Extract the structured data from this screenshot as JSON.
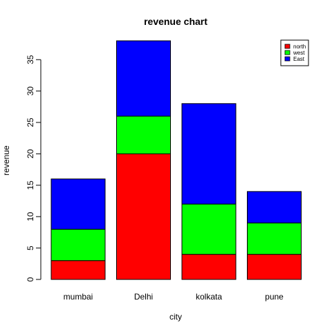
{
  "chart_data": {
    "type": "bar",
    "stacked": true,
    "title": "revenue chart",
    "xlabel": "city",
    "ylabel": "revenue",
    "categories": [
      "mumbai",
      "Delhi",
      "kolkata",
      "pune"
    ],
    "series": [
      {
        "name": "north",
        "color": "#ff0000",
        "values": [
          3,
          20,
          4,
          4
        ]
      },
      {
        "name": "west",
        "color": "#00ff00",
        "values": [
          5,
          6,
          8,
          5
        ]
      },
      {
        "name": "East",
        "color": "#0000ff",
        "values": [
          8,
          12,
          16,
          5
        ]
      }
    ],
    "ylim": [
      0,
      38
    ],
    "yticks": [
      0,
      5,
      10,
      15,
      20,
      25,
      30,
      35
    ],
    "legend_position": "top-right",
    "grid": false
  }
}
